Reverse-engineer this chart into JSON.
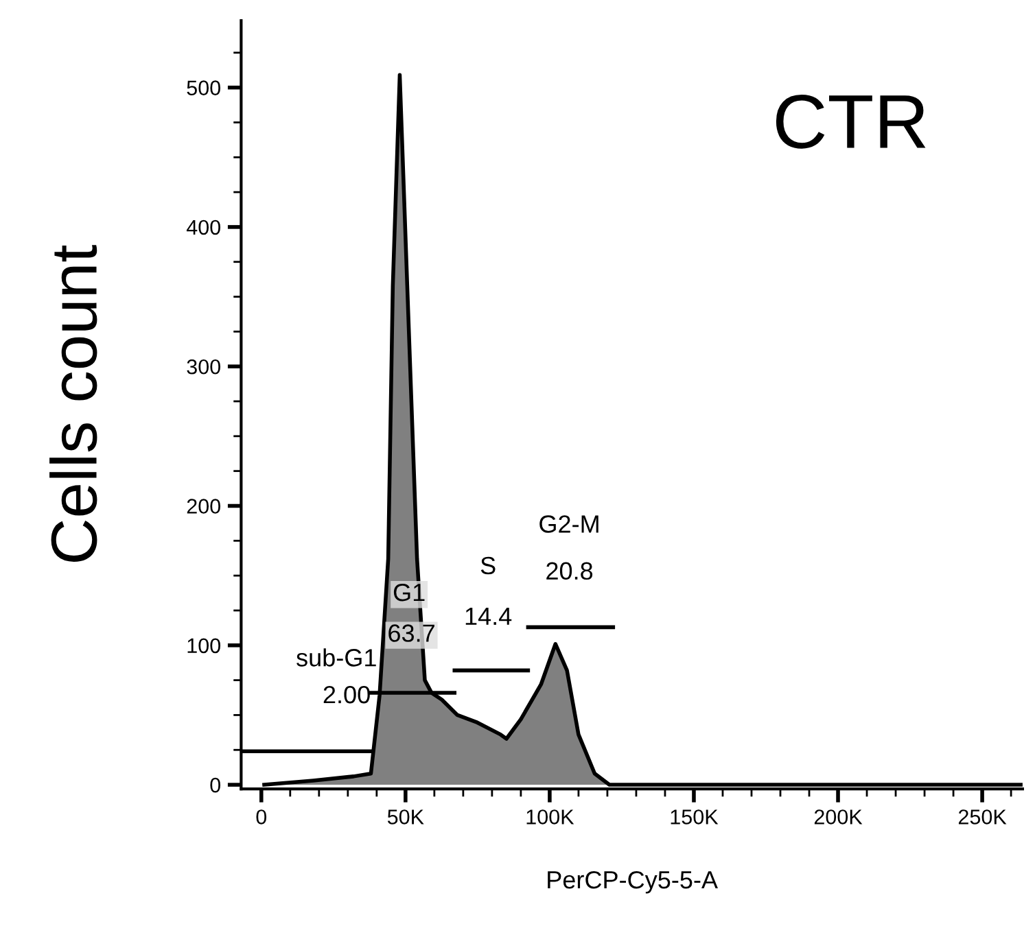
{
  "chart_data": {
    "type": "area",
    "xlabel": "PerCP-Cy5-5-A",
    "ylabel": "Cells count",
    "xlim": [
      -7,
      264
    ],
    "ylim": [
      -3,
      548
    ],
    "xticks": [
      {
        "value": 0,
        "label": "0"
      },
      {
        "value": 50,
        "label": "50K"
      },
      {
        "value": 100,
        "label": "100K"
      },
      {
        "value": 150,
        "label": "150K"
      },
      {
        "value": 200,
        "label": "200K"
      },
      {
        "value": 250,
        "label": "250K"
      }
    ],
    "yticks": [
      0,
      100,
      200,
      300,
      400,
      500
    ],
    "grid": false,
    "line_style": "solid",
    "series": [
      {
        "color": "#808080",
        "x": [
          1,
          18,
          32,
          38,
          41,
          44,
          45.6,
          48,
          50.6,
          54,
          56.7,
          59,
          62.6,
          68,
          74.5,
          83,
          85,
          90,
          97,
          102,
          106,
          110,
          115.6,
          120.7,
          264
        ],
        "values": [
          0,
          3,
          6,
          8,
          64,
          162,
          358,
          509,
          358,
          162,
          75,
          66,
          61,
          50,
          45,
          36,
          33,
          47,
          72,
          101,
          82,
          36,
          8,
          0,
          0
        ]
      },
      {
        "type": "line",
        "color": "#000000",
        "x": [
          -7,
          38.2
        ],
        "values": [
          24,
          24
        ]
      },
      {
        "type": "line",
        "color": "#000000",
        "x": [
          38,
          67
        ],
        "values": [
          66,
          66
        ]
      },
      {
        "type": "line",
        "color": "#000000",
        "x": [
          67,
          92.5
        ],
        "values": [
          82,
          82
        ]
      },
      {
        "type": "line",
        "color": "#000000",
        "x": [
          92.5,
          122
        ],
        "values": [
          113,
          113
        ]
      }
    ],
    "annotations": [
      "CTR",
      "sub-G1",
      "2.00",
      "G1",
      "63.7",
      "S",
      "14.4",
      "G2-M",
      "20.8"
    ]
  }
}
